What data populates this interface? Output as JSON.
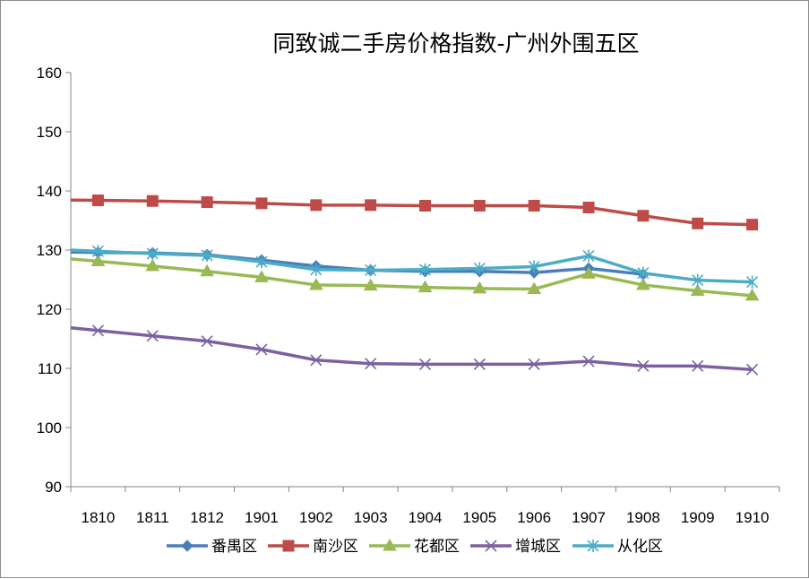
{
  "chart_data": {
    "type": "line",
    "title": "同致诚二手房价格指数-广州外围五区",
    "xlabel": "",
    "ylabel": "",
    "ylim": [
      90,
      160
    ],
    "yticks": [
      "160",
      "150",
      "140",
      "130",
      "120",
      "110",
      "100",
      "90"
    ],
    "categories": [
      "1810",
      "1811",
      "1812",
      "1901",
      "1902",
      "1903",
      "1904",
      "1905",
      "1906",
      "1907",
      "1908",
      "1909",
      "1910"
    ],
    "grid": false,
    "legend": "bottom",
    "series": [
      {
        "name": "番禺区",
        "color": "#4a7ebb",
        "marker": "diamond",
        "values": [
          129.6,
          129.5,
          129.2,
          128.3,
          127.3,
          126.6,
          126.4,
          126.4,
          126.2,
          126.9,
          125.9,
          null,
          null
        ]
      },
      {
        "name": "南沙区",
        "color": "#be4b48",
        "marker": "square",
        "values": [
          138.4,
          138.3,
          138.1,
          137.9,
          137.6,
          137.6,
          137.5,
          137.5,
          137.5,
          137.2,
          135.8,
          134.5,
          134.3
        ]
      },
      {
        "name": "花都区",
        "color": "#98b954",
        "marker": "triangle",
        "values": [
          128.1,
          127.3,
          126.4,
          125.4,
          124.1,
          124.0,
          123.7,
          123.5,
          123.4,
          126.0,
          124.1,
          123.1,
          122.3
        ]
      },
      {
        "name": "增城区",
        "color": "#7d60a0",
        "marker": "x",
        "values": [
          116.4,
          115.5,
          114.6,
          113.2,
          111.4,
          110.8,
          110.7,
          110.7,
          110.7,
          111.2,
          110.4,
          110.4,
          109.8
        ]
      },
      {
        "name": "从化区",
        "color": "#4bacc6",
        "marker": "star",
        "values": [
          129.8,
          129.4,
          129.1,
          128.0,
          126.7,
          126.6,
          126.7,
          126.9,
          127.2,
          129.0,
          126.1,
          124.9,
          124.6
        ]
      }
    ]
  }
}
